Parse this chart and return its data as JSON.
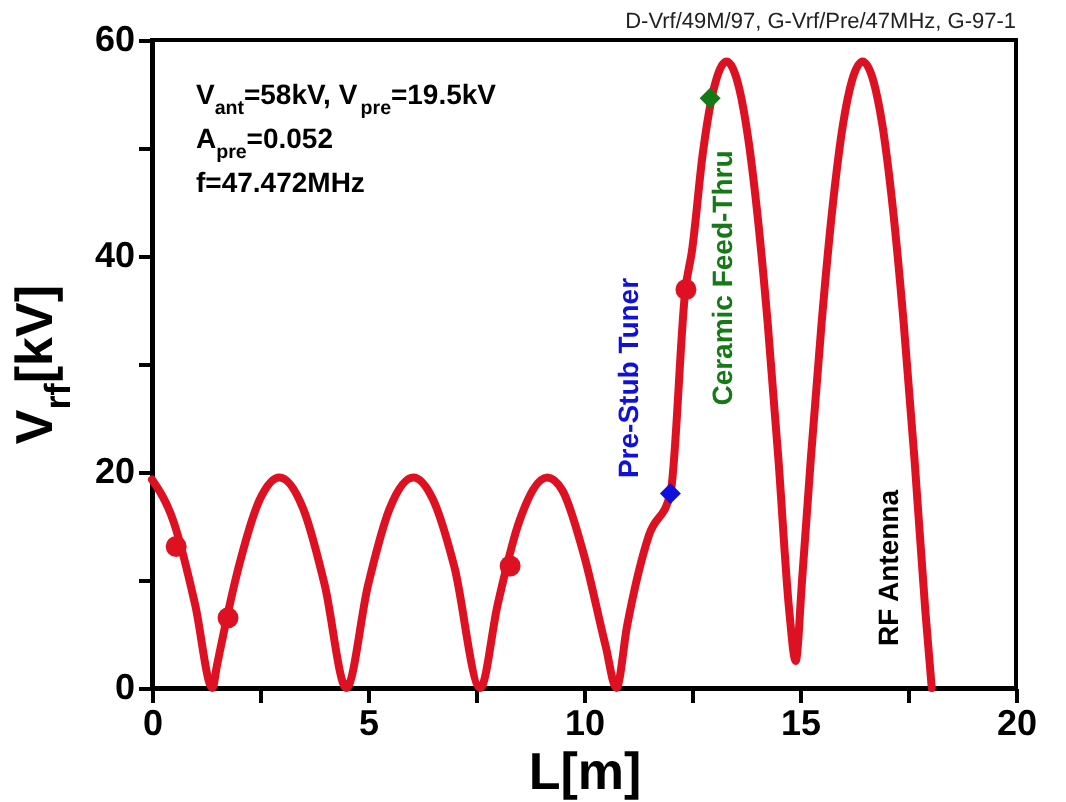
{
  "chart_data": {
    "type": "line",
    "xlabel": "L[m]",
    "ylabel": "V$_{rf}$[kV]",
    "xlim": [
      0,
      20
    ],
    "ylim": [
      0,
      60
    ],
    "xticks": [
      0,
      {
        "value": 2.5,
        "label": null
      },
      5,
      {
        "value": 7.5,
        "label": null
      },
      10,
      {
        "value": 12.5,
        "label": null
      },
      15,
      {
        "value": 17.5,
        "label": null
      },
      20
    ],
    "yticks": [
      0,
      {
        "value": 10,
        "label": null
      },
      20,
      {
        "value": 30,
        "label": null
      },
      40,
      {
        "value": 50,
        "label": null
      },
      60
    ],
    "grid": false,
    "series": [
      {
        "color": "#dd1122",
        "line_style": "solid",
        "marker": "none",
        "x": [
          0,
          0.5,
          1.0,
          1.4,
          1.5,
          2.0,
          2.5,
          2.95,
          3.5,
          4.0,
          4.5,
          5.0,
          5.5,
          6.05,
          6.5,
          7.0,
          7.6,
          8.0,
          8.5,
          9.15,
          9.5,
          10.0,
          10.5,
          10.75,
          11.0,
          11.5,
          12.0,
          12.35,
          12.5,
          12.75,
          12.95,
          13.0,
          13.3,
          13.6,
          13.8,
          14.0,
          14.25,
          14.5,
          14.75,
          14.9,
          15.05,
          15.25,
          15.5,
          15.75,
          16.0,
          16.2,
          16.45,
          16.7,
          16.9,
          17.15,
          17.4,
          17.65,
          17.9,
          18.05
        ],
        "values": [
          19.3,
          15.4,
          7.7,
          0,
          2.0,
          11.1,
          17.5,
          19.5,
          16.6,
          9.5,
          0,
          9.5,
          16.6,
          19.5,
          17.5,
          11.2,
          0,
          7.7,
          15.4,
          19.5,
          18.3,
          12.3,
          3.9,
          0,
          5.8,
          14.1,
          18,
          37,
          40.5,
          49.5,
          54.5,
          55.4,
          58,
          55.4,
          50.9,
          44.4,
          33.9,
          21.2,
          7.2,
          2.5,
          10.1,
          21.2,
          33.8,
          44.4,
          52.3,
          56.2,
          58,
          56.2,
          52.3,
          44.4,
          33.8,
          21.2,
          7.2,
          0
        ]
      },
      {
        "type": "scatter",
        "color": "#dd1122",
        "marker": "circle",
        "x": [
          0.56,
          1.76,
          8.29,
          12.36
        ],
        "values": [
          13.1,
          6.5,
          11.3,
          36.9
        ]
      },
      {
        "type": "scatter",
        "color": "#1010dd",
        "marker": "diamond",
        "x": [
          12.0
        ],
        "values": [
          18.0
        ]
      },
      {
        "type": "scatter",
        "color": "#157a15",
        "marker": "diamond",
        "x": [
          12.92
        ],
        "values": [
          54.6
        ]
      }
    ],
    "annotations": [
      "D-Vrf/49M/97, G-Vrf/Pre/47MHz, G-97-1",
      "V$_{ant}$=58kV, V$_{pre}$=19.5kV",
      "A$_{pre}$=0.052",
      "f=47.472MHz",
      "Pre-Stub Tuner",
      "Ceramic Feed-Thru",
      "RF Antenna"
    ]
  }
}
